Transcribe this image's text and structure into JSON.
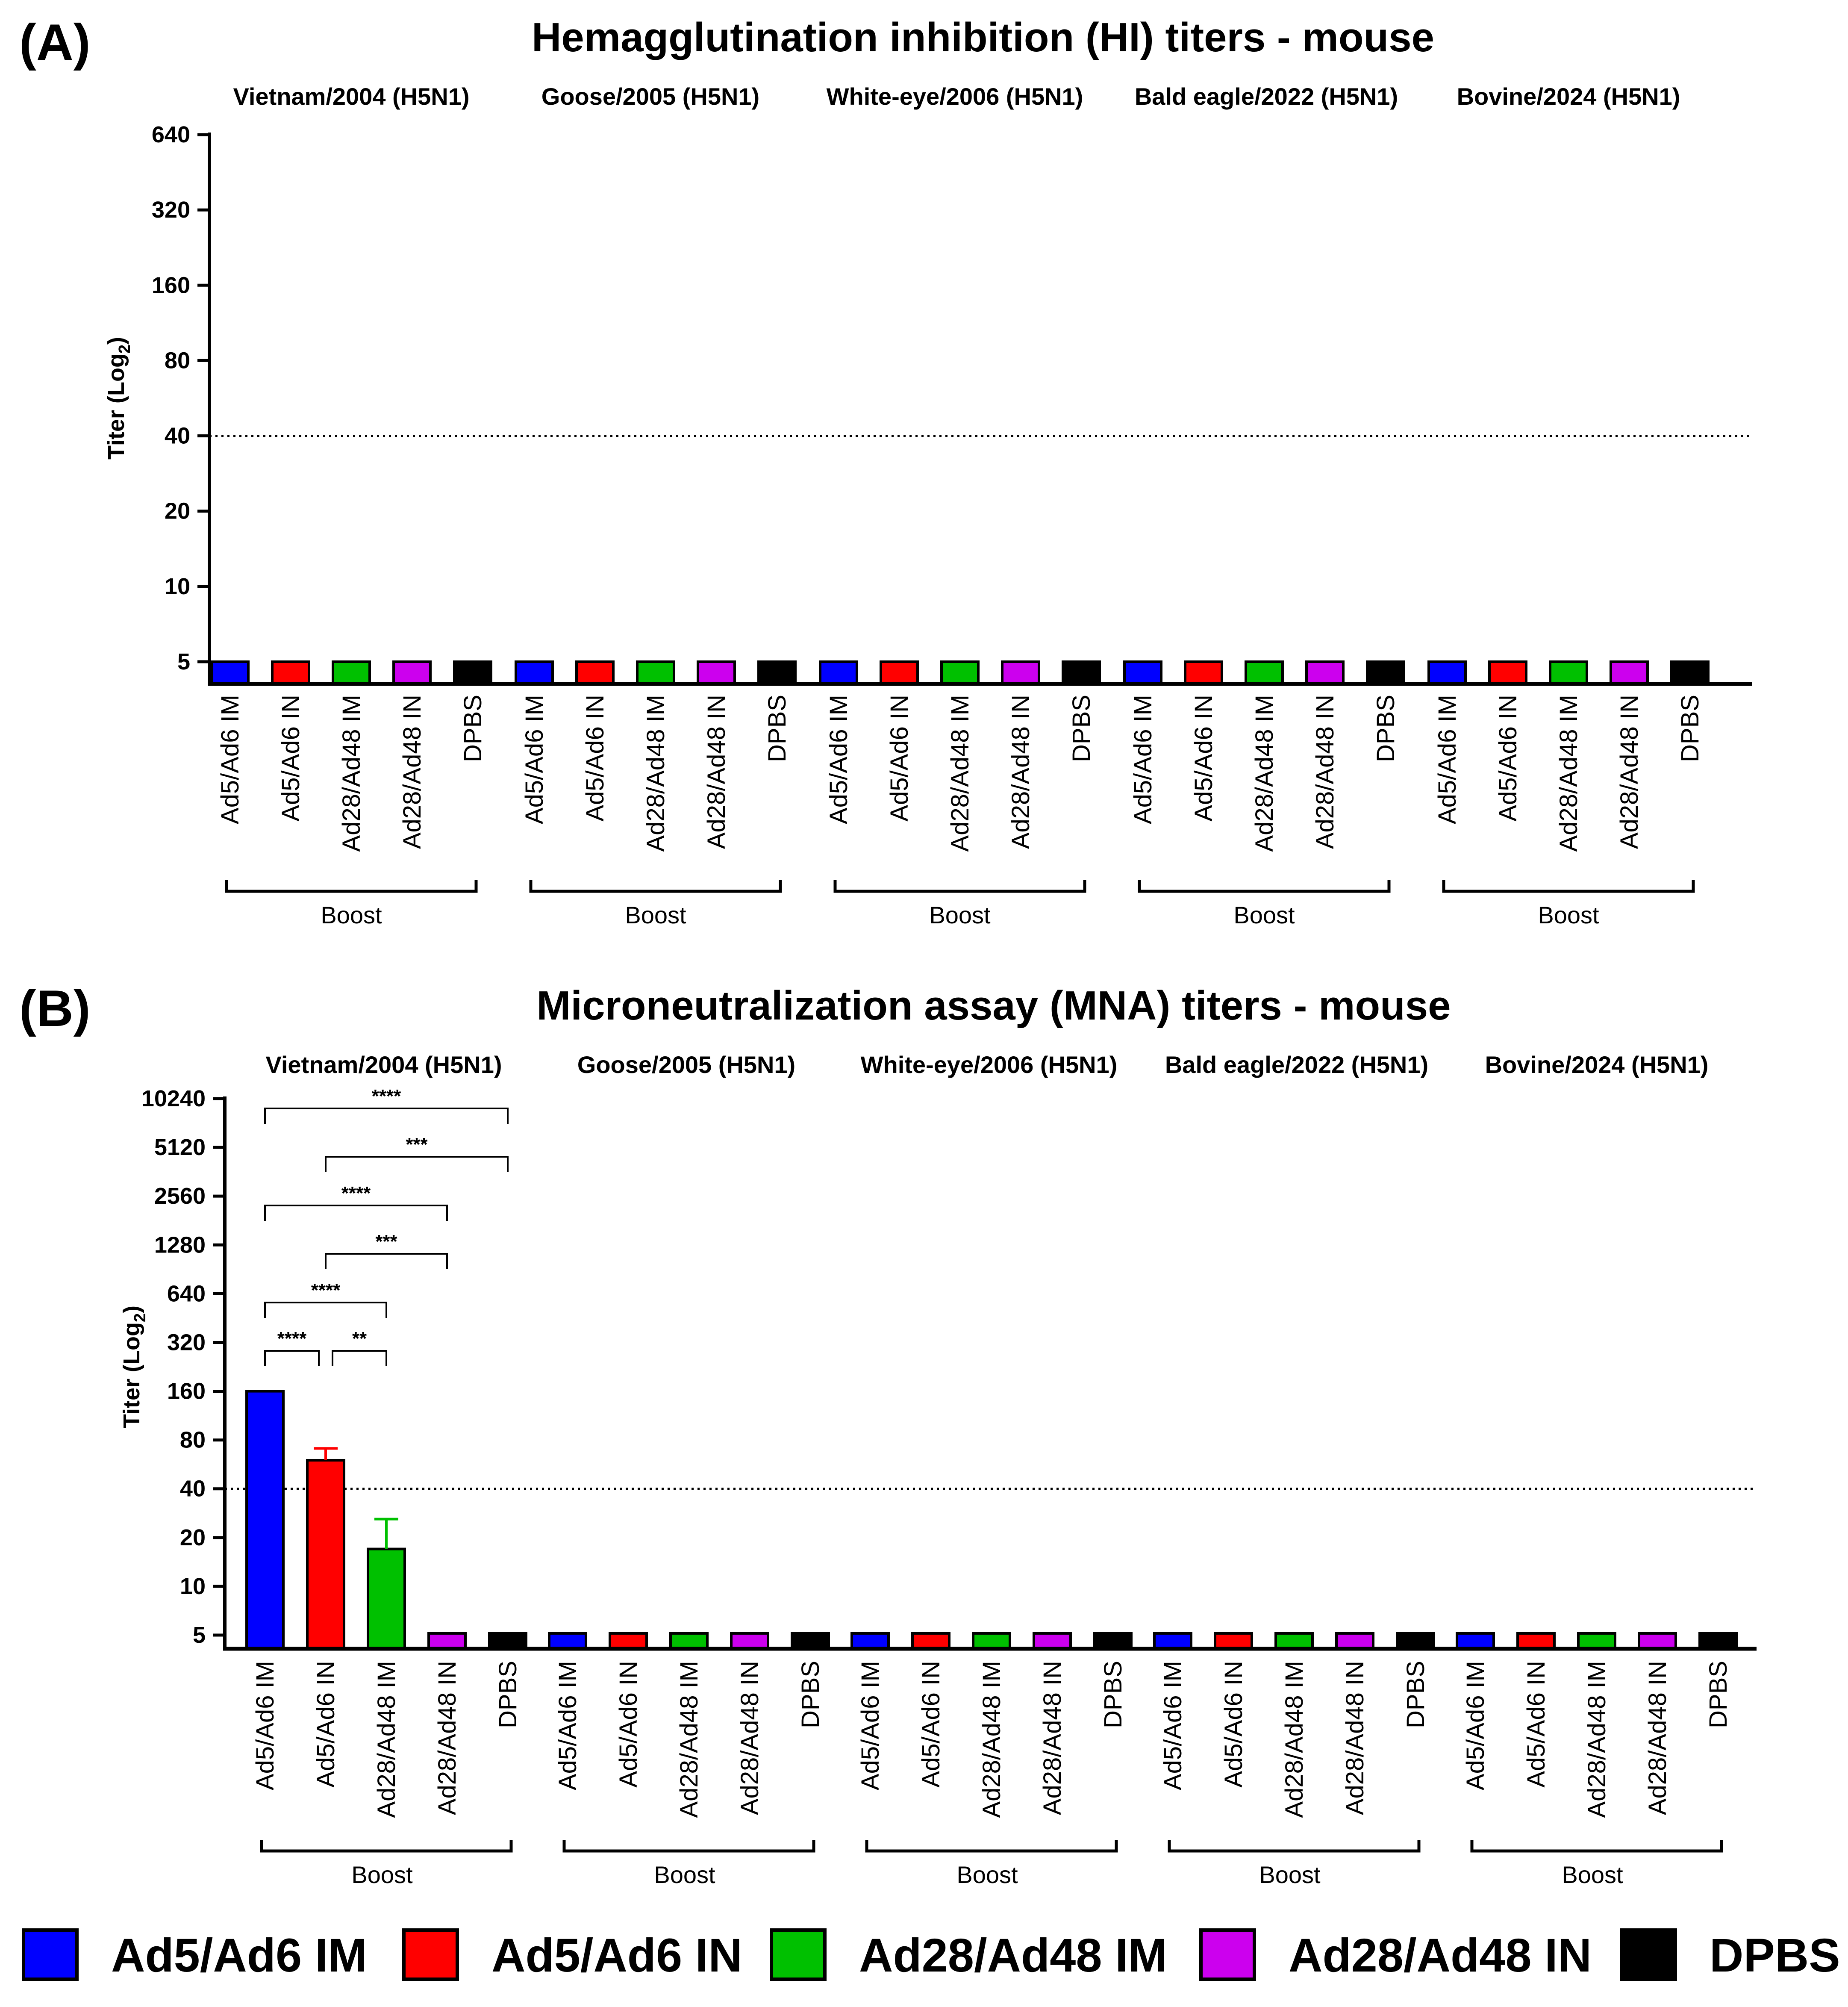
{
  "colors": {
    "Ad5/Ad6 IM": "#0000ff",
    "Ad5/Ad6 IN": "#ff0000",
    "Ad28/Ad48 IM": "#00c000",
    "Ad28/Ad48 IN": "#cc00ee",
    "DPBS": "#000000",
    "axis": "#000000"
  },
  "legend": {
    "items": [
      "Ad5/Ad6 IM",
      "Ad5/Ad6 IN",
      "Ad28/Ad48 IM",
      "Ad28/Ad48 IN",
      "DPBS"
    ]
  },
  "chart_data": [
    {
      "type": "bar",
      "panel_label": "(A)",
      "title": "Hemagglutination inhibition (HI) titers - mouse",
      "ylabel": "Titer (Log",
      "ylabel_sub": "2",
      "ylabel_close": ")",
      "yscale": "log2",
      "ylim": [
        5,
        640
      ],
      "yticks": [
        5,
        10,
        20,
        40,
        80,
        160,
        320,
        640
      ],
      "threshold": 40,
      "group_label": "Boost",
      "categories": [
        "Ad5/Ad6 IM",
        "Ad5/Ad6 IN",
        "Ad28/Ad48 IM",
        "Ad28/Ad48 IN",
        "DPBS"
      ],
      "groups": [
        {
          "name": "Vietnam/2004 (H5N1)",
          "values": [
            5,
            5,
            5,
            5,
            5
          ],
          "errors": [
            0,
            0,
            0,
            0,
            0
          ]
        },
        {
          "name": "Goose/2005 (H5N1)",
          "values": [
            5,
            5,
            5,
            5,
            5
          ],
          "errors": [
            0,
            0,
            0,
            0,
            0
          ]
        },
        {
          "name": "White-eye/2006 (H5N1)",
          "values": [
            5,
            5,
            5,
            5,
            5
          ],
          "errors": [
            0,
            0,
            0,
            0,
            0
          ]
        },
        {
          "name": "Bald eagle/2022 (H5N1)",
          "values": [
            5,
            5,
            5,
            5,
            5
          ],
          "errors": [
            0,
            0,
            0,
            0,
            0
          ]
        },
        {
          "name": "Bovine/2024 (H5N1)",
          "values": [
            5,
            5,
            5,
            5,
            5
          ],
          "errors": [
            0,
            0,
            0,
            0,
            0
          ]
        }
      ],
      "significance": []
    },
    {
      "type": "bar",
      "panel_label": "(B)",
      "title": "Microneutralization assay (MNA) titers - mouse",
      "ylabel": "Titer (Log",
      "ylabel_sub": "2",
      "ylabel_close": ")",
      "yscale": "log2",
      "ylim": [
        5,
        10240
      ],
      "yticks": [
        5,
        10,
        20,
        40,
        80,
        160,
        320,
        640,
        1280,
        2560,
        5120,
        10240
      ],
      "threshold": 40,
      "group_label": "Boost",
      "categories": [
        "Ad5/Ad6 IM",
        "Ad5/Ad6 IN",
        "Ad28/Ad48 IM",
        "Ad28/Ad48 IN",
        "DPBS"
      ],
      "groups": [
        {
          "name": "Vietnam/2004 (H5N1)",
          "values": [
            160,
            60,
            17,
            5,
            5
          ],
          "errors": [
            0,
            71,
            26,
            0,
            0
          ]
        },
        {
          "name": "Goose/2005 (H5N1)",
          "values": [
            5,
            5,
            5,
            5,
            5
          ],
          "errors": [
            0,
            0,
            0,
            0,
            0
          ]
        },
        {
          "name": "White-eye/2006 (H5N1)",
          "values": [
            5,
            5,
            5,
            5,
            5
          ],
          "errors": [
            0,
            0,
            0,
            0,
            0
          ]
        },
        {
          "name": "Bald eagle/2022 (H5N1)",
          "values": [
            5,
            5,
            5,
            5,
            5
          ],
          "errors": [
            0,
            0,
            0,
            0,
            0
          ]
        },
        {
          "name": "Bovine/2024 (H5N1)",
          "values": [
            5,
            5,
            5,
            5,
            5
          ],
          "errors": [
            0,
            0,
            0,
            0,
            0
          ]
        }
      ],
      "significance": [
        {
          "group": 0,
          "from": 0,
          "to": 4,
          "label": "****"
        },
        {
          "group": 0,
          "from": 1,
          "to": 4,
          "label": "***"
        },
        {
          "group": 0,
          "from": 0,
          "to": 3,
          "label": "****"
        },
        {
          "group": 0,
          "from": 1,
          "to": 3,
          "label": "***"
        },
        {
          "group": 0,
          "from": 0,
          "to": 2,
          "label": "****"
        },
        {
          "group": 0,
          "from": 0,
          "to": 1,
          "label": "****"
        },
        {
          "group": 0,
          "from": 1,
          "to": 2,
          "label": "**"
        }
      ]
    }
  ]
}
